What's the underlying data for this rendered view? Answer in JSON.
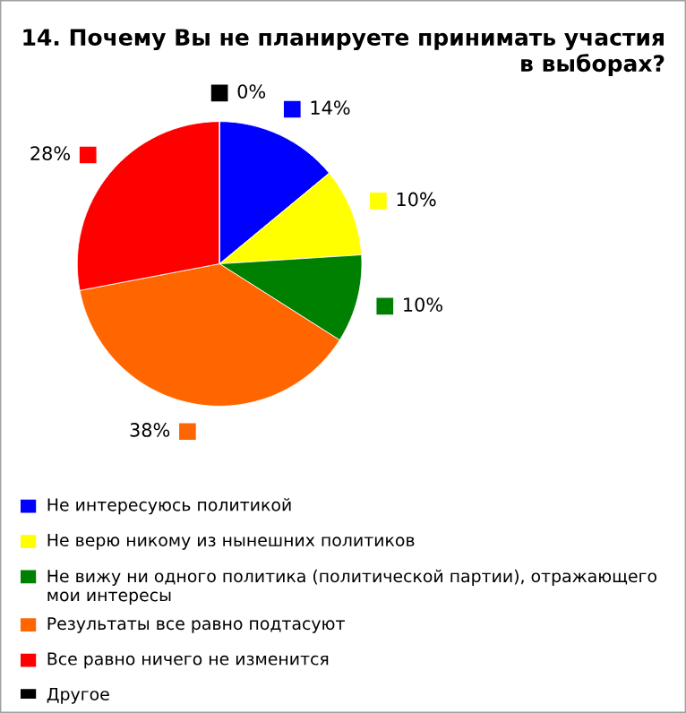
{
  "chart_data": {
    "type": "pie",
    "title": "14. Почему Вы не планируете принимать участия в выборах?",
    "categories": [
      "Не интересуюсь политикой",
      "Не верю никому из нынешних политиков",
      "Не вижу ни одного политика (политической партии), отражающего мои интересы",
      "Результаты все равно подтасуют",
      "Все равно ничего не изменится",
      "Другое"
    ],
    "values": [
      14,
      10,
      10,
      38,
      28,
      0
    ],
    "value_labels": [
      "14%",
      "10%",
      "10%",
      "38%",
      "28%",
      "0%"
    ],
    "colors": [
      "#0000ff",
      "#ffff00",
      "#008000",
      "#ff6600",
      "#ff0000",
      "#000000"
    ],
    "legend": "bottom"
  }
}
